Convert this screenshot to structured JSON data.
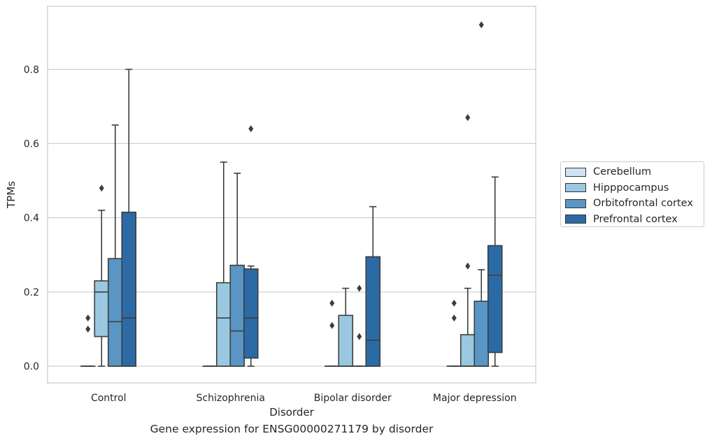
{
  "caption": "Gene expression for ENSG00000271179 by disorder",
  "chart_data": {
    "type": "box",
    "title": "",
    "xlabel": "Disorder",
    "ylabel": "TPMs",
    "ylim": [
      -0.045,
      0.97
    ],
    "yticks": [
      0.0,
      0.2,
      0.4,
      0.6,
      0.8
    ],
    "ytick_labels": [
      "0.0",
      "0.2",
      "0.4",
      "0.6",
      "0.8"
    ],
    "grid": "horizontal",
    "legend_position": "right",
    "categories": [
      "Control",
      "Schizophrenia",
      "Bipolar disorder",
      "Major depression"
    ],
    "series": [
      {
        "name": "Cerebellum",
        "color": "#d1e2f2",
        "boxes": [
          {
            "min": 0,
            "q1": 0,
            "median": 0,
            "q3": 0,
            "max": 0,
            "outliers": [
              0.1,
              0.13
            ]
          },
          {
            "min": 0,
            "q1": 0,
            "median": 0,
            "q3": 0,
            "max": 0,
            "outliers": []
          },
          {
            "min": 0,
            "q1": 0,
            "median": 0,
            "q3": 0,
            "max": 0,
            "outliers": [
              0.11,
              0.17
            ]
          },
          {
            "min": 0,
            "q1": 0,
            "median": 0,
            "q3": 0,
            "max": 0,
            "outliers": [
              0.13,
              0.17
            ]
          }
        ]
      },
      {
        "name": "Hipppocampus",
        "color": "#9ac8e0",
        "boxes": [
          {
            "min": 0,
            "q1": 0.08,
            "median": 0.2,
            "q3": 0.23,
            "max": 0.42,
            "outliers": [
              0.48
            ]
          },
          {
            "min": 0,
            "q1": 0,
            "median": 0.13,
            "q3": 0.225,
            "max": 0.55,
            "outliers": []
          },
          {
            "min": 0,
            "q1": 0,
            "median": 0,
            "q3": 0.137,
            "max": 0.21,
            "outliers": []
          },
          {
            "min": 0,
            "q1": 0,
            "median": 0,
            "q3": 0.085,
            "max": 0.21,
            "outliers": [
              0.27,
              0.67
            ]
          }
        ]
      },
      {
        "name": "Orbitofrontal cortex",
        "color": "#5a96c5",
        "boxes": [
          {
            "min": 0,
            "q1": 0,
            "median": 0.12,
            "q3": 0.29,
            "max": 0.65,
            "outliers": []
          },
          {
            "min": 0,
            "q1": 0,
            "median": 0.095,
            "q3": 0.272,
            "max": 0.52,
            "outliers": []
          },
          {
            "min": 0,
            "q1": 0,
            "median": 0,
            "q3": 0,
            "max": 0,
            "outliers": [
              0.08,
              0.21
            ]
          },
          {
            "min": 0,
            "q1": 0,
            "median": 0,
            "q3": 0.175,
            "max": 0.26,
            "outliers": [
              0.92
            ]
          }
        ]
      },
      {
        "name": "Prefrontal cortex",
        "color": "#2c6aa6",
        "boxes": [
          {
            "min": 0,
            "q1": 0,
            "median": 0.13,
            "q3": 0.415,
            "max": 0.8,
            "outliers": []
          },
          {
            "min": 0,
            "q1": 0.022,
            "median": 0.13,
            "q3": 0.262,
            "max": 0.27,
            "outliers": [
              0.64
            ]
          },
          {
            "min": 0,
            "q1": 0,
            "median": 0.07,
            "q3": 0.295,
            "max": 0.43,
            "outliers": []
          },
          {
            "min": 0,
            "q1": 0.037,
            "median": 0.245,
            "q3": 0.325,
            "max": 0.51,
            "outliers": []
          }
        ]
      }
    ]
  }
}
